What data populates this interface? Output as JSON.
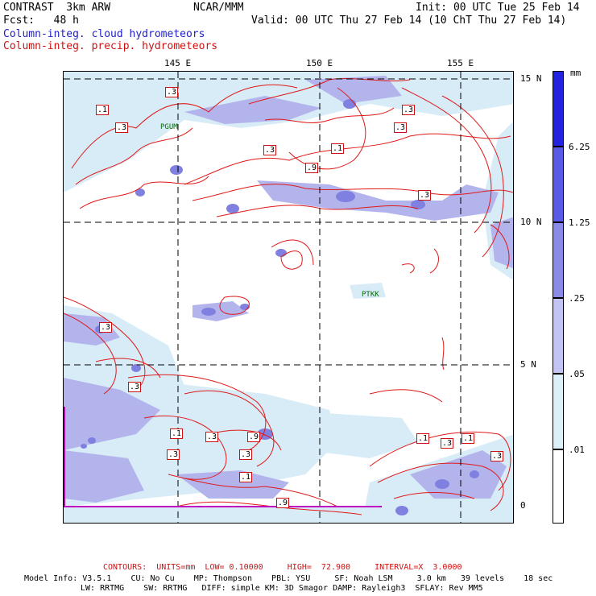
{
  "header": {
    "line1_left": "CONTRAST  3km ARW",
    "line1_center": "NCAR/MMM",
    "line1_right": "Init: 00 UTC Tue 25 Feb 14",
    "line2_left": "Fcst:   48 h",
    "line2_right": "Valid: 00 UTC Thu 27 Feb 14 (10 ChT Thu 27 Feb 14)",
    "field1": "Column-integ. cloud hydrometeors",
    "field2": "Column-integ. precip. hydrometeors"
  },
  "axes": {
    "lon_labels": [
      "145 E",
      "150 E",
      "155 E"
    ],
    "lat_labels": [
      "15 N",
      "10 N",
      "5 N",
      "0"
    ]
  },
  "stations": [
    "PTKK",
    "PGUM"
  ],
  "contour_labels": [
    ".1",
    ".3",
    ".9"
  ],
  "colorbar": {
    "unit": "mm",
    "labels": [
      "6.25",
      "1.25",
      ".25",
      ".05",
      ".01"
    ],
    "colors": [
      "#2222e0",
      "#5a5ae8",
      "#8a8ae8",
      "#c4c4f4",
      "#ddf0fa",
      "#ffffff"
    ]
  },
  "colors": {
    "cloud_light": "#d8ecf8",
    "cloud_medium": "#b4b4ec",
    "cloud_strong": "#8080e0",
    "contour": "#e01818",
    "border": "#c000c0"
  },
  "footer": {
    "contours": "CONTOURS:  UNITS=mm  LOW= 0.10000     HIGH=  72.900     INTERVAL=X  3.0000",
    "model_line1": "Model Info: V3.5.1    CU: No Cu    MP: Thompson    PBL: YSU     SF: Noah LSM     3.0 km   39 levels    18 sec",
    "model_line2": "LW: RRTMG    SW: RRTMG   DIFF: simple KM: 3D Smagor DAMP: Rayleigh3  SFLAY: Rev MM5"
  }
}
